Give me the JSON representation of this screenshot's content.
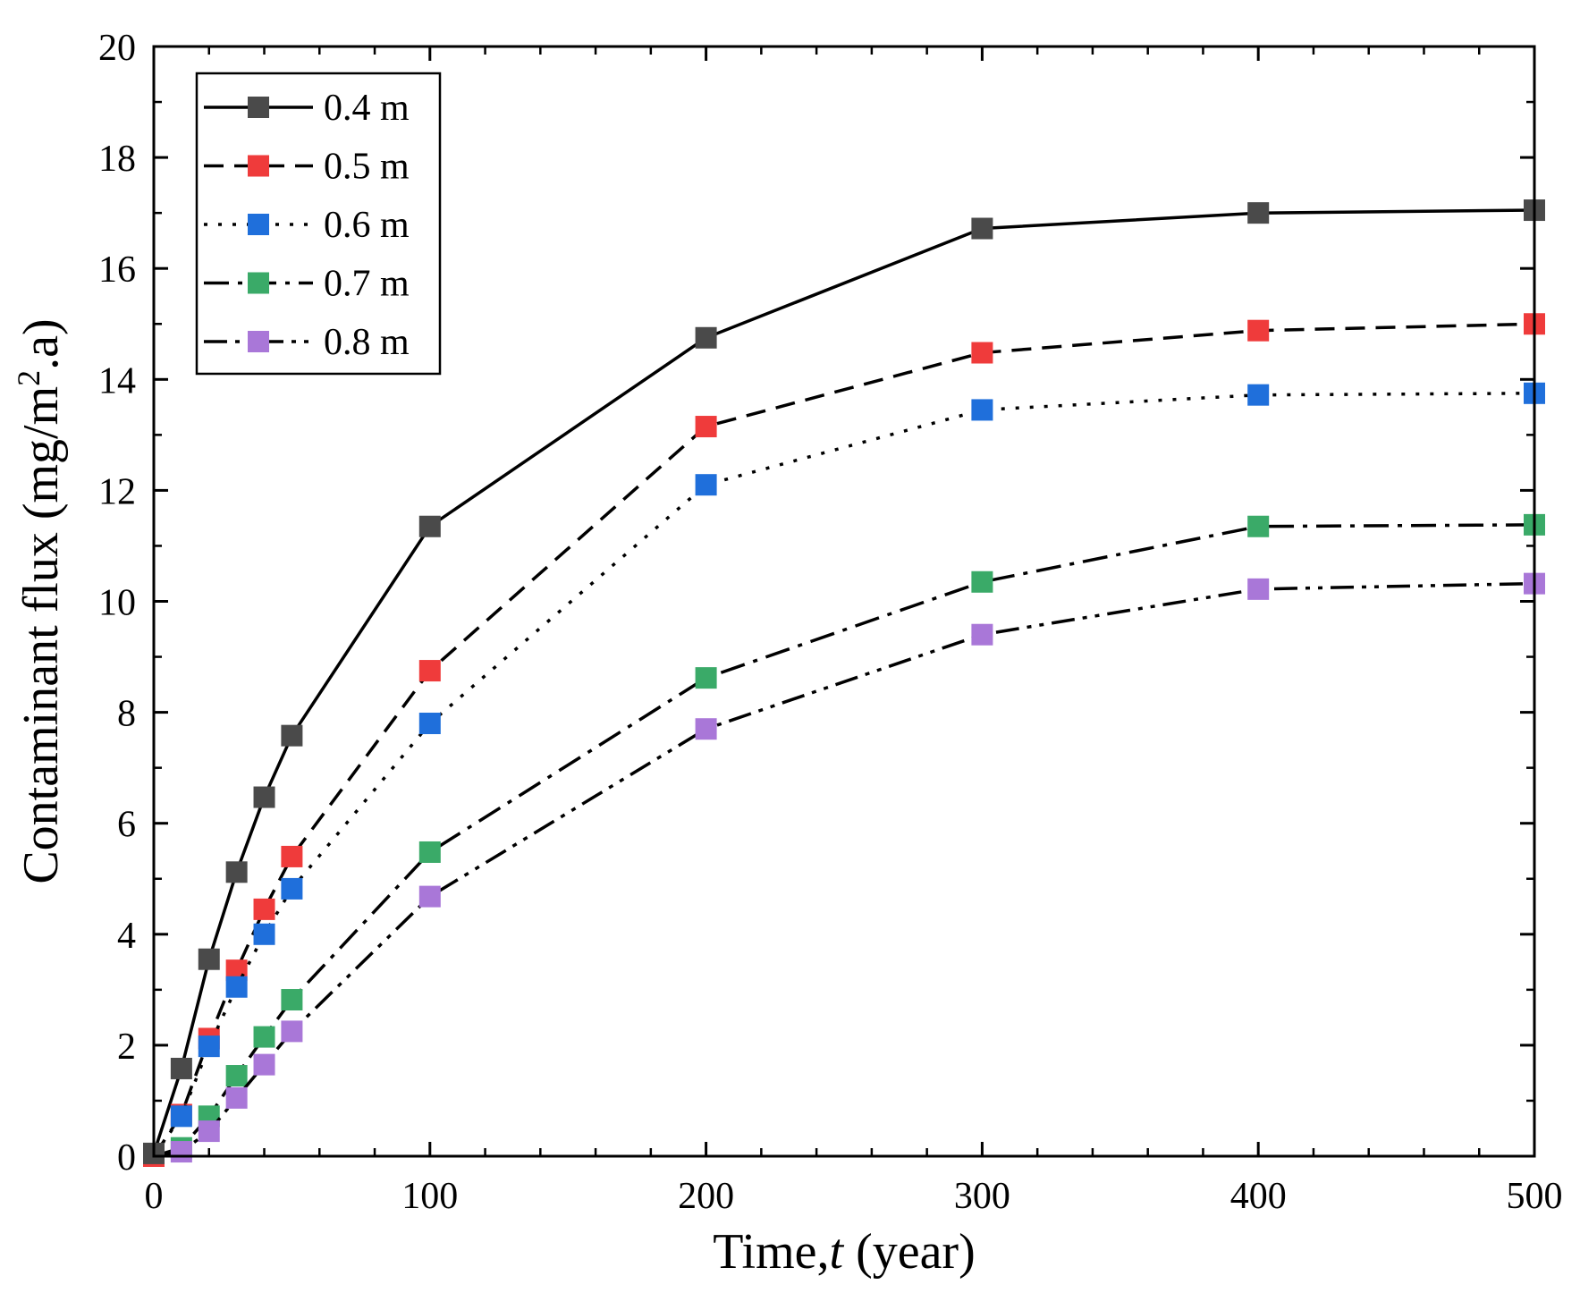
{
  "chart_data": {
    "type": "line",
    "title": "",
    "xlabel": "Time,",
    "xlabel_italic": "t",
    "xlabel_unit": " (year)",
    "ylabel": "Contaminant flux (mg/m",
    "ylabel_sup": "2",
    "ylabel_tail": ".a)",
    "xlim": [
      0,
      500
    ],
    "ylim": [
      0,
      20
    ],
    "xticks": [
      0,
      100,
      200,
      300,
      400,
      500
    ],
    "yticks": [
      0,
      2,
      4,
      6,
      8,
      10,
      12,
      14,
      16,
      18,
      20
    ],
    "grid": false,
    "legend_position": "top-left",
    "x": [
      0,
      10,
      20,
      30,
      40,
      50,
      100,
      200,
      300,
      400,
      500
    ],
    "series": [
      {
        "name": "0.4 m",
        "color": "#4a4a4a",
        "dash": "solid",
        "values": [
          0.05,
          1.58,
          3.55,
          5.12,
          6.47,
          7.58,
          11.35,
          14.75,
          16.72,
          17.0,
          17.05
        ]
      },
      {
        "name": "0.5 m",
        "color": "#ef3b3b",
        "dash": "dashed",
        "values": [
          0.0,
          0.75,
          2.12,
          3.35,
          4.45,
          5.4,
          8.75,
          13.15,
          14.48,
          14.88,
          15.0
        ]
      },
      {
        "name": "0.6 m",
        "color": "#1f6fdb",
        "dash": "dotted",
        "values": [
          0.0,
          0.72,
          1.98,
          3.05,
          4.0,
          4.82,
          7.8,
          12.1,
          13.45,
          13.72,
          13.75
        ]
      },
      {
        "name": "0.7 m",
        "color": "#3aaa68",
        "dash": "dashdot",
        "values": [
          0.0,
          0.15,
          0.72,
          1.45,
          2.15,
          2.82,
          5.48,
          8.62,
          10.35,
          11.35,
          11.38
        ]
      },
      {
        "name": "0.8 m",
        "color": "#a977d8",
        "dash": "dashdotdot",
        "values": [
          0.0,
          0.08,
          0.45,
          1.05,
          1.65,
          2.25,
          4.68,
          7.7,
          9.4,
          10.22,
          10.32
        ]
      }
    ]
  }
}
